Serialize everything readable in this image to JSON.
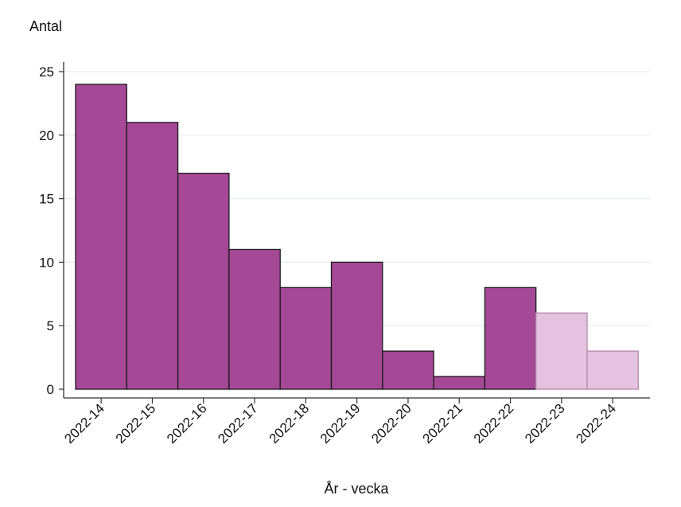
{
  "chart_data": {
    "type": "bar",
    "ylabel": "Antal",
    "xlabel": "År - vecka",
    "categories": [
      "2022-14",
      "2022-15",
      "2022-16",
      "2022-17",
      "2022-18",
      "2022-19",
      "2022-20",
      "2022-21",
      "2022-22",
      "2022-23",
      "2022-24"
    ],
    "values": [
      24,
      21,
      17,
      11,
      8,
      10,
      3,
      1,
      8,
      6,
      3
    ],
    "provisional": [
      false,
      false,
      false,
      false,
      false,
      false,
      false,
      false,
      false,
      true,
      true
    ],
    "ylim": [
      0,
      25
    ],
    "yticks": [
      0,
      5,
      10,
      15,
      20,
      25
    ],
    "grid": true,
    "colors": {
      "bar": "#a54896",
      "bar_provisional": "#e5c2df",
      "bar_stroke": "#1a1a1a",
      "bar_provisional_stroke": "#b58aab",
      "grid": "#e6ebef",
      "axis": "#333333"
    }
  }
}
